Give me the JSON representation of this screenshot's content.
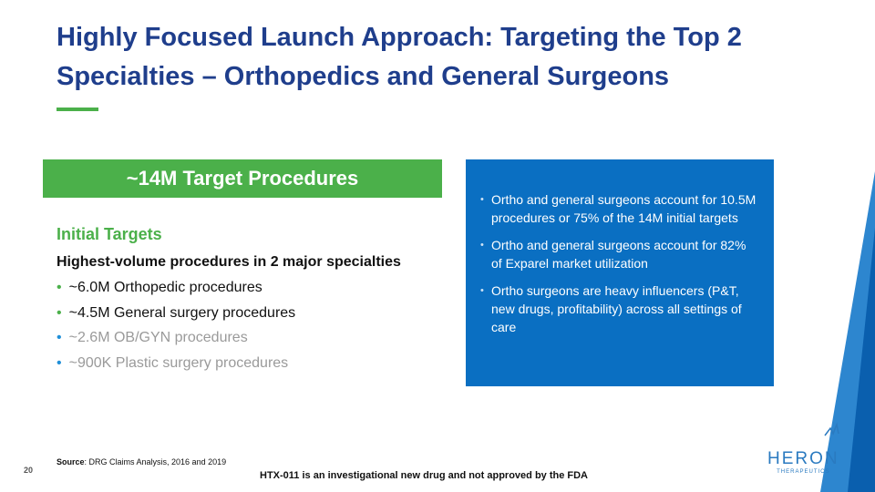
{
  "header": {
    "title_lines": [
      "Highly Focused Launch Approach: Targeting the Top 2",
      "Specialties – Orthopedics and General Surgeons"
    ]
  },
  "banner": {
    "text": "~14M Target Procedures"
  },
  "left": {
    "heading": "Initial Targets",
    "subheading": "Highest-volume procedures in 2 major specialties",
    "items": [
      {
        "text": "~6.0M Orthopedic procedures",
        "muted": false
      },
      {
        "text": "~4.5M General surgery procedures",
        "muted": false
      },
      {
        "text": "~2.6M OB/GYN procedures",
        "muted": true
      },
      {
        "text": "~900K Plastic surgery procedures",
        "muted": true
      }
    ]
  },
  "box": {
    "items": [
      "Ortho and general surgeons account for 10.5M procedures or 75% of the 14M initial targets",
      "Ortho and general surgeons account for 82% of Exparel market utilization",
      "Ortho surgeons are heavy influencers (P&T, new drugs, profitability) across all settings of care"
    ]
  },
  "footer": {
    "source_label": "Source",
    "source_text": ": DRG Claims Analysis, 2016 and 2019",
    "page_number": "20",
    "disclaimer": "HTX-011 is an investigational new drug and not approved by the FDA"
  },
  "logo": {
    "name": "HERON",
    "sub": "THERAPEUTICS"
  }
}
